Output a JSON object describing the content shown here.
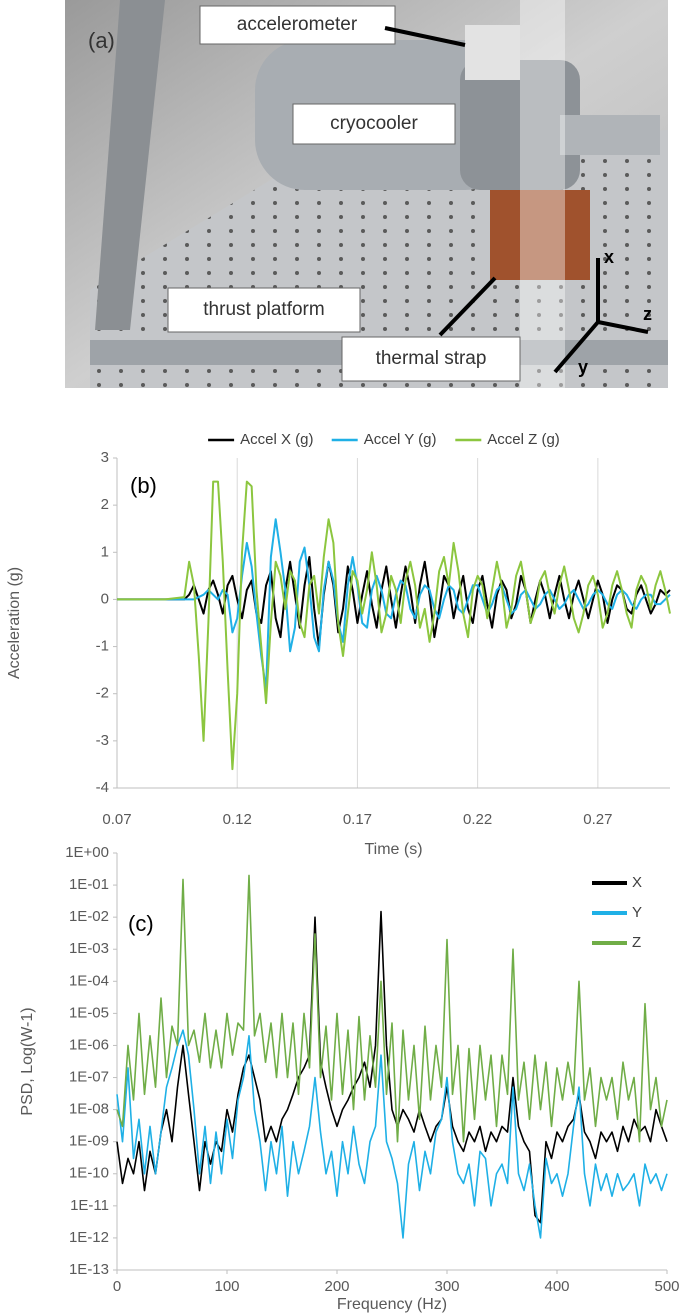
{
  "figure_a": {
    "panel_label": "(a)",
    "labels": [
      "accelerometer",
      "cryocooler",
      "thrust platform",
      "thermal strap"
    ],
    "axes": [
      "x",
      "z",
      "y"
    ]
  },
  "chart_data": [
    {
      "type": "line",
      "annotation": "(b)",
      "x_label": "Time (s)",
      "y_label": "Acceleration (g)",
      "xlim": [
        0.07,
        0.3
      ],
      "xticks": [
        0.07,
        0.12,
        0.17,
        0.22,
        0.27
      ],
      "ylim": [
        -4,
        3
      ],
      "yticks": [
        -4,
        -3,
        -2,
        -1,
        0,
        1,
        2,
        3
      ],
      "grid": "x",
      "legend": "top",
      "log_y": false,
      "x": [
        0.07,
        0.08,
        0.09,
        0.098,
        0.1,
        0.102,
        0.104,
        0.106,
        0.108,
        0.11,
        0.112,
        0.114,
        0.116,
        0.118,
        0.12,
        0.122,
        0.124,
        0.126,
        0.128,
        0.13,
        0.132,
        0.134,
        0.136,
        0.138,
        0.14,
        0.142,
        0.144,
        0.146,
        0.148,
        0.15,
        0.152,
        0.154,
        0.156,
        0.158,
        0.16,
        0.162,
        0.164,
        0.166,
        0.168,
        0.17,
        0.172,
        0.174,
        0.176,
        0.178,
        0.18,
        0.182,
        0.184,
        0.186,
        0.188,
        0.19,
        0.192,
        0.194,
        0.196,
        0.198,
        0.2,
        0.202,
        0.204,
        0.206,
        0.208,
        0.21,
        0.212,
        0.214,
        0.216,
        0.218,
        0.22,
        0.222,
        0.224,
        0.226,
        0.228,
        0.23,
        0.232,
        0.234,
        0.236,
        0.238,
        0.24,
        0.242,
        0.244,
        0.246,
        0.248,
        0.25,
        0.252,
        0.254,
        0.256,
        0.258,
        0.26,
        0.262,
        0.264,
        0.266,
        0.268,
        0.27,
        0.272,
        0.274,
        0.276,
        0.278,
        0.28,
        0.282,
        0.284,
        0.286,
        0.288,
        0.29,
        0.292,
        0.294,
        0.296,
        0.298,
        0.3
      ],
      "series": [
        {
          "name": "Accel X (g)",
          "color": "#000000",
          "values": [
            0,
            0,
            0,
            0,
            0.1,
            0.3,
            0,
            -0.3,
            0.2,
            0.4,
            0.1,
            -0.3,
            0.3,
            0.5,
            0,
            -0.4,
            0.2,
            0.4,
            -0.3,
            -0.5,
            0.3,
            0.6,
            -0.4,
            -0.8,
            0.2,
            0.8,
            0.1,
            -0.6,
            0.3,
            0.9,
            -0.2,
            -1.0,
            0.1,
            0.8,
            0.3,
            -0.7,
            -0.2,
            0.7,
            0.2,
            -0.5,
            0.1,
            0.6,
            -0.1,
            -0.6,
            0.2,
            0.7,
            0,
            -0.6,
            0.1,
            0.7,
            0.2,
            -0.5,
            0.3,
            0.8,
            0.1,
            -0.8,
            -0.2,
            0.5,
            0.3,
            -0.4,
            0.1,
            0.5,
            -0.2,
            -0.5,
            0.2,
            0.5,
            -0.1,
            -0.6,
            0.1,
            0.4,
            0.2,
            -0.4,
            -0.1,
            0.5,
            0.2,
            -0.5,
            0,
            0.4,
            0.1,
            -0.4,
            0.1,
            0.5,
            0,
            -0.4,
            0.1,
            0.4,
            0,
            -0.4,
            0,
            0.4,
            0.1,
            -0.5,
            0,
            0.3,
            0.2,
            -0.2,
            -0.3,
            0.1,
            0.3,
            0,
            -0.3,
            -0.1,
            0.2,
            0.1,
            0.2
          ]
        },
        {
          "name": "Accel Y (g)",
          "color": "#1fb0e6",
          "values": [
            0,
            0,
            0,
            0,
            0,
            0,
            0.05,
            0.1,
            0.2,
            0.1,
            0,
            0.2,
            0.1,
            -0.7,
            -0.4,
            0.5,
            1.2,
            0.7,
            -0.3,
            -1.2,
            -1.9,
            0.9,
            1.7,
            1.0,
            0.2,
            -1.1,
            -0.6,
            0.8,
            1.1,
            0.3,
            -0.8,
            -1.1,
            0.2,
            0.8,
            0.4,
            -0.5,
            -0.9,
            0.3,
            0.9,
            0.3,
            -0.5,
            -0.6,
            0.2,
            0.5,
            0.2,
            -0.3,
            -0.4,
            0.1,
            0.4,
            0.3,
            -0.2,
            -0.4,
            0.1,
            0.3,
            0.2,
            -0.2,
            -0.4,
            0,
            0.3,
            0.2,
            -0.2,
            -0.3,
            0,
            0.3,
            0.3,
            0,
            -0.3,
            -0.1,
            0.2,
            0.3,
            0,
            -0.3,
            -0.2,
            0.1,
            0.2,
            0,
            -0.2,
            -0.1,
            0.1,
            0.2,
            0,
            -0.2,
            -0.1,
            0.1,
            0.2,
            0,
            -0.2,
            -0.1,
            0.1,
            0.2,
            0.1,
            -0.1,
            -0.2,
            0.1,
            0.2,
            0.1,
            -0.1,
            -0.2,
            0,
            0.1,
            0.1,
            -0.1,
            -0.1,
            0,
            0.1
          ]
        },
        {
          "name": "Accel Z (g)",
          "color": "#8cc63f",
          "values": [
            0,
            0,
            0,
            0.05,
            0.8,
            0.3,
            -1.2,
            -3.0,
            -0.5,
            2.5,
            2.5,
            0.8,
            -1.5,
            -3.6,
            -2.0,
            1.0,
            2.5,
            2.4,
            0.2,
            -1.0,
            -2.2,
            -0.5,
            0.8,
            0.5,
            -0.2,
            0.6,
            0.4,
            -0.5,
            -0.8,
            0.3,
            0.5,
            -0.3,
            0.9,
            1.7,
            1.2,
            -0.5,
            -1.2,
            -0.3,
            0.6,
            0.4,
            -0.3,
            0.2,
            1.0,
            0.3,
            -0.7,
            -0.3,
            0.5,
            0.2,
            -0.5,
            0.4,
            0.8,
            0.3,
            -0.6,
            -0.2,
            -0.9,
            -0.3,
            0.6,
            0.9,
            0.3,
            1.2,
            0.6,
            -0.3,
            -0.8,
            0.2,
            0.5,
            0.3,
            -0.4,
            0.2,
            0.8,
            0.3,
            -0.6,
            -0.2,
            0.5,
            0.8,
            0.2,
            -0.5,
            -0.2,
            0.4,
            0.6,
            0.1,
            -0.3,
            0.3,
            0.7,
            0.2,
            -0.4,
            -0.7,
            -0.3,
            0.3,
            0.5,
            0.1,
            -0.6,
            -0.3,
            0.3,
            0.6,
            0.2,
            -0.3,
            -0.6,
            0.2,
            0.5,
            0.3,
            -0.2,
            0.3,
            0.6,
            0.2,
            -0.3
          ]
        }
      ]
    },
    {
      "type": "line",
      "annotation": "(c)",
      "x_label": "Frequency (Hz)",
      "y_label": "PSD, Log(W-1)",
      "xlim": [
        0,
        500
      ],
      "xticks": [
        0,
        100,
        200,
        300,
        400,
        500
      ],
      "ylim": [
        1e-13,
        1
      ],
      "log_y": true,
      "grid": false,
      "legend": "upper right",
      "yticks": [
        {
          "value": 1,
          "label": "1E+00"
        },
        {
          "value": 0.1,
          "label": "1E-01"
        },
        {
          "value": 0.01,
          "label": "1E-02"
        },
        {
          "value": 0.001,
          "label": "1E-03"
        },
        {
          "value": 0.0001,
          "label": "1E-04"
        },
        {
          "value": 1e-05,
          "label": "1E-05"
        },
        {
          "value": 1e-06,
          "label": "1E-06"
        },
        {
          "value": 1e-07,
          "label": "1E-07"
        },
        {
          "value": 1e-08,
          "label": "1E-08"
        },
        {
          "value": 1e-09,
          "label": "1E-09"
        },
        {
          "value": 1e-10,
          "label": "1E-10"
        },
        {
          "value": 1e-11,
          "label": "1E-11"
        },
        {
          "value": 1e-12,
          "label": "1E-12"
        },
        {
          "value": 1e-13,
          "label": "1E-13"
        }
      ],
      "x": [
        0,
        5,
        10,
        15,
        20,
        25,
        30,
        35,
        40,
        45,
        50,
        55,
        60,
        65,
        70,
        75,
        80,
        85,
        90,
        95,
        100,
        105,
        110,
        115,
        120,
        125,
        130,
        135,
        140,
        145,
        150,
        155,
        160,
        165,
        170,
        175,
        180,
        185,
        190,
        195,
        200,
        205,
        210,
        215,
        220,
        225,
        230,
        235,
        240,
        245,
        250,
        255,
        260,
        265,
        270,
        275,
        280,
        285,
        290,
        295,
        300,
        305,
        310,
        315,
        320,
        325,
        330,
        335,
        340,
        345,
        350,
        355,
        360,
        365,
        370,
        375,
        380,
        385,
        390,
        395,
        400,
        405,
        410,
        415,
        420,
        425,
        430,
        435,
        440,
        445,
        450,
        455,
        460,
        465,
        470,
        475,
        480,
        485,
        490,
        495,
        500
      ],
      "series": [
        {
          "name": "X",
          "color": "#000000",
          "values": [
            1e-09,
            5e-11,
            3e-10,
            1e-10,
            1e-09,
            3e-11,
            5e-10,
            1e-10,
            2e-09,
            1e-08,
            1e-09,
            5e-08,
            1e-06,
            3e-08,
            1e-09,
            3e-11,
            1e-09,
            2e-10,
            1e-09,
            5e-10,
            1e-08,
            2e-09,
            3e-08,
            2e-07,
            5e-07,
            1e-07,
            2e-08,
            1e-09,
            3e-09,
            1e-09,
            5e-09,
            1e-08,
            3e-08,
            1e-07,
            2e-07,
            5e-07,
            0.01,
            3e-07,
            5e-08,
            1e-08,
            3e-09,
            1e-08,
            2e-08,
            5e-08,
            1e-07,
            3e-07,
            5e-08,
            1e-06,
            0.015,
            1e-06,
            1e-08,
            3e-09,
            1e-08,
            5e-09,
            2e-09,
            1e-08,
            3e-09,
            1e-09,
            3e-09,
            5e-09,
            5e-08,
            3e-09,
            1e-09,
            5e-10,
            2e-09,
            1e-09,
            3e-09,
            5e-10,
            2e-09,
            1e-09,
            3e-09,
            2e-09,
            1e-07,
            3e-09,
            1e-09,
            5e-10,
            5e-12,
            3e-12,
            1e-09,
            3e-10,
            2e-09,
            1e-09,
            3e-09,
            5e-09,
            3e-08,
            2e-09,
            1e-09,
            3e-10,
            2e-09,
            1e-09,
            2e-09,
            5e-10,
            3e-09,
            1e-09,
            5e-09,
            2e-09,
            3e-09,
            1e-09,
            1e-08,
            3e-09,
            1e-09
          ]
        },
        {
          "name": "Y",
          "color": "#1fb0e6",
          "values": [
            3e-08,
            1e-09,
            2e-07,
            3e-10,
            5e-09,
            1e-10,
            3e-09,
            1e-10,
            2e-09,
            5e-08,
            2e-07,
            1e-06,
            3e-06,
            5e-07,
            1e-08,
            1e-10,
            3e-09,
            5e-11,
            2e-09,
            1e-10,
            5e-09,
            3e-10,
            2e-08,
            1e-07,
            2e-06,
            1e-08,
            1e-09,
            3e-11,
            1e-09,
            1e-10,
            3e-09,
            2e-11,
            1e-09,
            1e-10,
            5e-10,
            3e-09,
            1e-07,
            2e-09,
            1e-10,
            5e-10,
            2e-11,
            1e-09,
            1e-10,
            3e-09,
            2e-10,
            5e-11,
            1e-09,
            3e-09,
            5e-07,
            1e-09,
            3e-10,
            5e-11,
            1e-12,
            2e-10,
            1e-09,
            3e-11,
            5e-10,
            1e-10,
            2e-09,
            5e-09,
            1e-07,
            1e-09,
            1e-10,
            5e-11,
            2e-10,
            1e-11,
            5e-10,
            3e-10,
            1e-11,
            1e-10,
            2e-10,
            5e-11,
            5e-08,
            1e-10,
            3e-11,
            2e-10,
            1e-11,
            1e-12,
            3e-10,
            5e-11,
            1e-10,
            2e-11,
            1e-10,
            3e-09,
            5e-08,
            1e-10,
            1e-11,
            2e-10,
            3e-11,
            1e-10,
            2e-11,
            1e-10,
            3e-11,
            5e-11,
            1e-10,
            1e-11,
            2e-10,
            5e-11,
            1e-10,
            3e-11,
            1e-10
          ]
        },
        {
          "name": "Z",
          "color": "#70ad47",
          "values": [
            1e-08,
            3e-09,
            1e-06,
            2e-08,
            1e-05,
            3e-08,
            2e-06,
            5e-08,
            3e-05,
            1e-07,
            4e-06,
            1e-06,
            0.15,
            1e-06,
            3e-06,
            3e-07,
            1e-05,
            2e-07,
            3e-06,
            2e-07,
            1e-05,
            5e-07,
            5e-06,
            3e-06,
            0.2,
            2e-06,
            1e-05,
            3e-07,
            5e-06,
            1e-07,
            1e-05,
            1e-07,
            5e-06,
            3e-08,
            1e-05,
            2e-07,
            0.003,
            1e-07,
            4e-06,
            2e-08,
            1e-05,
            3e-08,
            3e-06,
            1e-08,
            8e-06,
            2e-08,
            2e-06,
            5e-08,
            0.0001,
            3e-08,
            5e-06,
            1e-09,
            3e-06,
            2e-08,
            1e-06,
            5e-09,
            4e-06,
            2e-08,
            1e-06,
            5e-08,
            0.002,
            3e-08,
            1e-06,
            1e-09,
            8e-07,
            5e-09,
            1e-06,
            2e-08,
            5e-07,
            3e-09,
            5e-07,
            3e-08,
            0.001,
            2e-08,
            3e-07,
            5e-09,
            5e-07,
            1e-08,
            3e-07,
            3e-09,
            2e-07,
            2e-08,
            3e-07,
            3e-08,
            0.0001,
            2e-08,
            2e-07,
            3e-09,
            1e-07,
            2e-08,
            1e-07,
            5e-09,
            3e-07,
            2e-08,
            1e-07,
            1e-09,
            2e-05,
            1e-08,
            1e-07,
            3e-09,
            2e-08
          ]
        }
      ]
    }
  ]
}
